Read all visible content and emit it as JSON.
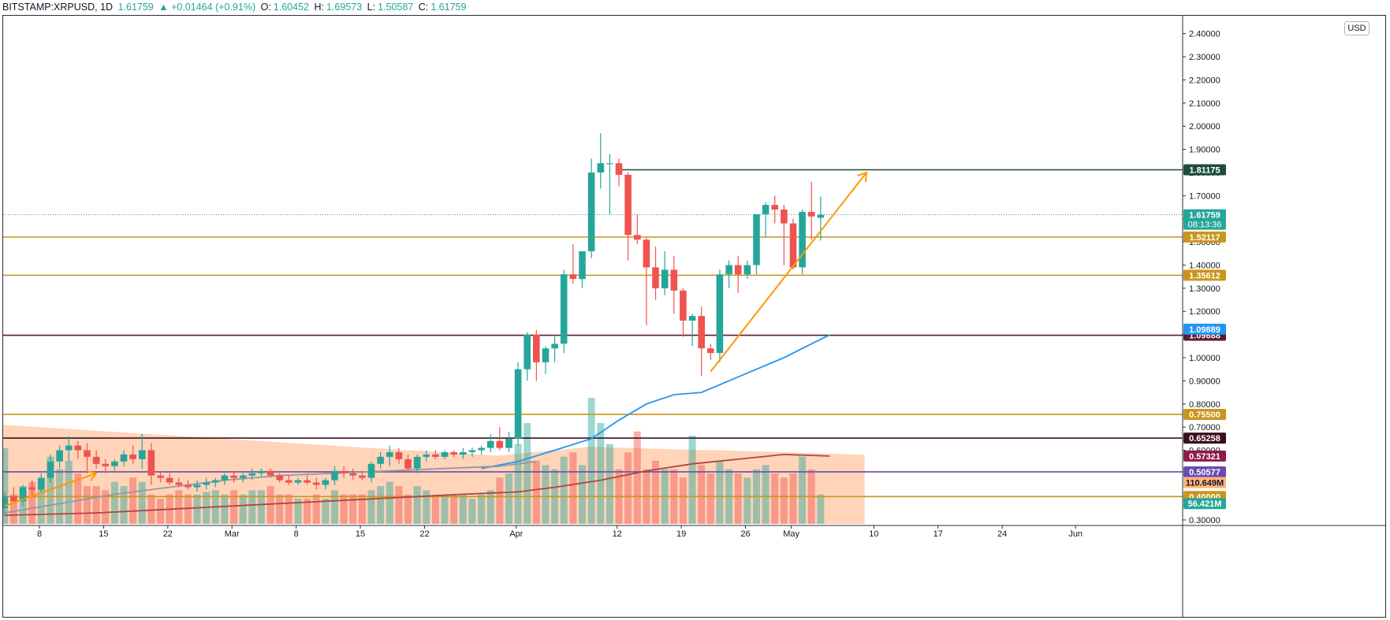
{
  "header": {
    "symbol": "BITSTAMP:XRPUSD, 1D",
    "last": "1.61759",
    "change": "▲ +0.01464 (+0.91%)",
    "open_label": "O:",
    "open": "1.60452",
    "high_label": "H:",
    "high": "1.69573",
    "low_label": "L:",
    "low": "1.50587",
    "close_label": "C:",
    "close": "1.61759"
  },
  "currency_label": "USD",
  "colors": {
    "up": "#26a69a",
    "down": "#ef5350",
    "ma_blue": "#2196f3",
    "ma_red": "#b2443e",
    "ma_grey": "#9598a1",
    "support_orange": "#cc9900",
    "arrow_orange": "#ff9800",
    "volume_area": "#ffc9a8"
  },
  "chart_data": {
    "type": "candlestick",
    "symbol": "XRPUSD",
    "timeframe": "1D",
    "y_axis_ticks": [
      "2.40000",
      "2.30000",
      "2.20000",
      "2.10000",
      "2.00000",
      "1.90000",
      "1.80000",
      "1.70000",
      "1.60000",
      "1.50000",
      "1.40000",
      "1.30000",
      "1.20000",
      "1.10000",
      "1.00000",
      "0.90000",
      "0.80000",
      "0.70000",
      "0.60000",
      "0.30000"
    ],
    "ylim": [
      0.3,
      2.4
    ],
    "x_axis_labels": [
      {
        "label": "8",
        "day": 0
      },
      {
        "label": "15",
        "day": 7
      },
      {
        "label": "22",
        "day": 14
      },
      {
        "label": "Mar",
        "day": 21
      },
      {
        "label": "8",
        "day": 28
      },
      {
        "label": "15",
        "day": 35
      },
      {
        "label": "22",
        "day": 42
      },
      {
        "label": "Apr",
        "day": 52
      },
      {
        "label": "12",
        "day": 63
      },
      {
        "label": "19",
        "day": 70
      },
      {
        "label": "26",
        "day": 77
      },
      {
        "label": "May",
        "day": 82
      },
      {
        "label": "10",
        "day": 91
      },
      {
        "label": "17",
        "day": 98
      },
      {
        "label": "24",
        "day": 105
      },
      {
        "label": "Jun",
        "day": 113
      }
    ],
    "candles": [
      [
        0.35,
        0.42,
        0.32,
        0.4
      ],
      [
        0.4,
        0.44,
        0.37,
        0.38
      ],
      [
        0.38,
        0.45,
        0.36,
        0.44
      ],
      [
        0.44,
        0.47,
        0.4,
        0.43
      ],
      [
        0.43,
        0.5,
        0.42,
        0.48
      ],
      [
        0.48,
        0.58,
        0.46,
        0.55
      ],
      [
        0.55,
        0.62,
        0.52,
        0.6
      ],
      [
        0.6,
        0.66,
        0.55,
        0.62
      ],
      [
        0.62,
        0.64,
        0.56,
        0.6
      ],
      [
        0.6,
        0.63,
        0.5,
        0.57
      ],
      [
        0.57,
        0.6,
        0.52,
        0.54
      ],
      [
        0.54,
        0.56,
        0.5,
        0.53
      ],
      [
        0.53,
        0.56,
        0.51,
        0.55
      ],
      [
        0.55,
        0.6,
        0.53,
        0.58
      ],
      [
        0.58,
        0.62,
        0.54,
        0.56
      ],
      [
        0.56,
        0.67,
        0.52,
        0.6
      ],
      [
        0.6,
        0.63,
        0.45,
        0.49
      ],
      [
        0.49,
        0.51,
        0.46,
        0.48
      ],
      [
        0.48,
        0.5,
        0.45,
        0.46
      ],
      [
        0.46,
        0.48,
        0.44,
        0.45
      ],
      [
        0.45,
        0.47,
        0.43,
        0.44
      ],
      [
        0.44,
        0.47,
        0.42,
        0.45
      ],
      [
        0.45,
        0.48,
        0.43,
        0.46
      ],
      [
        0.46,
        0.48,
        0.44,
        0.47
      ],
      [
        0.47,
        0.5,
        0.45,
        0.49
      ],
      [
        0.49,
        0.51,
        0.46,
        0.48
      ],
      [
        0.48,
        0.5,
        0.46,
        0.49
      ],
      [
        0.49,
        0.52,
        0.47,
        0.5
      ],
      [
        0.5,
        0.52,
        0.48,
        0.51
      ],
      [
        0.51,
        0.52,
        0.48,
        0.49
      ],
      [
        0.49,
        0.5,
        0.46,
        0.47
      ],
      [
        0.47,
        0.49,
        0.45,
        0.46
      ],
      [
        0.46,
        0.48,
        0.45,
        0.47
      ],
      [
        0.47,
        0.49,
        0.45,
        0.46
      ],
      [
        0.46,
        0.48,
        0.43,
        0.45
      ],
      [
        0.45,
        0.48,
        0.43,
        0.47
      ],
      [
        0.47,
        0.53,
        0.45,
        0.51
      ],
      [
        0.51,
        0.53,
        0.48,
        0.5
      ],
      [
        0.5,
        0.52,
        0.47,
        0.49
      ],
      [
        0.49,
        0.51,
        0.47,
        0.48
      ],
      [
        0.48,
        0.55,
        0.46,
        0.54
      ],
      [
        0.54,
        0.59,
        0.52,
        0.57
      ],
      [
        0.57,
        0.62,
        0.53,
        0.59
      ],
      [
        0.59,
        0.61,
        0.54,
        0.56
      ],
      [
        0.56,
        0.58,
        0.5,
        0.52
      ],
      [
        0.52,
        0.58,
        0.5,
        0.57
      ],
      [
        0.57,
        0.6,
        0.55,
        0.58
      ],
      [
        0.58,
        0.6,
        0.56,
        0.57
      ],
      [
        0.57,
        0.6,
        0.56,
        0.59
      ],
      [
        0.59,
        0.6,
        0.57,
        0.58
      ],
      [
        0.58,
        0.61,
        0.56,
        0.59
      ],
      [
        0.59,
        0.61,
        0.57,
        0.6
      ],
      [
        0.6,
        0.62,
        0.58,
        0.61
      ],
      [
        0.61,
        0.67,
        0.59,
        0.64
      ],
      [
        0.64,
        0.7,
        0.6,
        0.61
      ],
      [
        0.61,
        0.68,
        0.59,
        0.65
      ],
      [
        0.65,
        0.98,
        0.62,
        0.95
      ],
      [
        0.95,
        1.11,
        0.9,
        1.1
      ],
      [
        1.1,
        1.12,
        0.9,
        0.98
      ],
      [
        0.98,
        1.05,
        0.93,
        1.04
      ],
      [
        1.04,
        1.1,
        0.98,
        1.06
      ],
      [
        1.06,
        1.38,
        1.02,
        1.36
      ],
      [
        1.36,
        1.49,
        1.32,
        1.34
      ],
      [
        1.34,
        1.44,
        1.3,
        1.46
      ],
      [
        1.46,
        1.86,
        1.43,
        1.8
      ],
      [
        1.8,
        1.97,
        1.73,
        1.84
      ],
      [
        1.84,
        1.88,
        1.62,
        1.84
      ],
      [
        1.84,
        1.86,
        1.74,
        1.79
      ],
      [
        1.79,
        1.8,
        1.42,
        1.53
      ],
      [
        1.53,
        1.62,
        1.49,
        1.51
      ],
      [
        1.51,
        1.52,
        1.14,
        1.39
      ],
      [
        1.39,
        1.48,
        1.25,
        1.3
      ],
      [
        1.3,
        1.46,
        1.27,
        1.38
      ],
      [
        1.38,
        1.44,
        1.19,
        1.29
      ],
      [
        1.29,
        1.3,
        1.09,
        1.16
      ],
      [
        1.16,
        1.19,
        1.05,
        1.18
      ],
      [
        1.18,
        1.22,
        0.92,
        1.04
      ],
      [
        1.04,
        1.06,
        0.99,
        1.02
      ],
      [
        1.02,
        1.38,
        0.98,
        1.36
      ],
      [
        1.36,
        1.42,
        1.3,
        1.4
      ],
      [
        1.4,
        1.44,
        1.28,
        1.36
      ],
      [
        1.36,
        1.42,
        1.34,
        1.4
      ],
      [
        1.4,
        1.6,
        1.36,
        1.62
      ],
      [
        1.62,
        1.67,
        1.52,
        1.66
      ],
      [
        1.66,
        1.7,
        1.58,
        1.64
      ],
      [
        1.64,
        1.66,
        1.4,
        1.58
      ],
      [
        1.58,
        1.6,
        1.38,
        1.39
      ],
      [
        1.39,
        1.64,
        1.36,
        1.63
      ],
      [
        1.63,
        1.76,
        1.51,
        1.61
      ],
      [
        1.60452,
        1.69573,
        1.50587,
        1.61759
      ]
    ],
    "volume": {
      "max_label": "110.649M",
      "last_label": "56.421M",
      "values": [
        90,
        35,
        45,
        50,
        55,
        80,
        65,
        75,
        60,
        45,
        45,
        40,
        50,
        45,
        55,
        50,
        35,
        30,
        35,
        40,
        35,
        35,
        38,
        40,
        35,
        40,
        35,
        40,
        40,
        45,
        35,
        35,
        30,
        30,
        35,
        30,
        40,
        35,
        35,
        35,
        40,
        45,
        50,
        45,
        35,
        45,
        40,
        35,
        35,
        35,
        35,
        30,
        35,
        40,
        55,
        60,
        95,
        120,
        75,
        70,
        65,
        80,
        85,
        70,
        150,
        120,
        95,
        65,
        85,
        110,
        65,
        75,
        65,
        65,
        55,
        105,
        70,
        60,
        75,
        65,
        60,
        55,
        65,
        70,
        60,
        55,
        60,
        80,
        65,
        35
      ]
    },
    "horizontal_levels": [
      {
        "value": 1.81175,
        "label": "1.81175",
        "color": "#1e4d3a",
        "start_day": 67
      },
      {
        "value": 1.52117,
        "label": "1.52117",
        "color": "#c9951c"
      },
      {
        "value": 1.35612,
        "label": "1.35612",
        "color": "#c9951c"
      },
      {
        "value": 1.09688,
        "label": "1.09688",
        "color": "#5c1a2e"
      },
      {
        "value": 0.755,
        "label": "0.75500",
        "color": "#c9951c"
      },
      {
        "value": 0.65258,
        "label": "0.65258",
        "color": "#3a1020"
      },
      {
        "value": 0.50577,
        "label": "0.50577",
        "color": "#6a4cb0"
      },
      {
        "value": 0.4,
        "label": "0.40000",
        "color": "#c9951c"
      }
    ],
    "price_badges": [
      {
        "value": 1.61759,
        "label": "1.61759",
        "sublabel": "08:13:36",
        "color": "#26a69a"
      },
      {
        "value": 1.09889,
        "label": "1.09889",
        "color": "#2196f3",
        "offset": -7
      },
      {
        "value": 0.57321,
        "label": "0.57321",
        "color": "#8c1c4a"
      },
      {
        "value": 0.46,
        "label": "110.649M",
        "color": "#ffb27a",
        "text_color": "#131722"
      },
      {
        "value": 0.37,
        "label": "56.421M",
        "color": "#26a69a"
      }
    ],
    "moving_averages": [
      {
        "name": "ma-blue",
        "color": "#2196f3",
        "points": [
          [
            52,
            0.52
          ],
          [
            56,
            0.55
          ],
          [
            60,
            0.6
          ],
          [
            64,
            0.65
          ],
          [
            67,
            0.73
          ],
          [
            70,
            0.8
          ],
          [
            73,
            0.84
          ],
          [
            76,
            0.85
          ],
          [
            79,
            0.9
          ],
          [
            82,
            0.95
          ],
          [
            85,
            1.0
          ],
          [
            88,
            1.06
          ],
          [
            90,
            1.09889
          ]
        ]
      },
      {
        "name": "ma-red",
        "color": "#b2443e",
        "points": [
          [
            0,
            0.32
          ],
          [
            10,
            0.33
          ],
          [
            20,
            0.35
          ],
          [
            30,
            0.37
          ],
          [
            40,
            0.39
          ],
          [
            50,
            0.41
          ],
          [
            56,
            0.42
          ],
          [
            60,
            0.44
          ],
          [
            65,
            0.47
          ],
          [
            70,
            0.51
          ],
          [
            75,
            0.54
          ],
          [
            80,
            0.56
          ],
          [
            85,
            0.58
          ],
          [
            90,
            0.57321
          ]
        ]
      },
      {
        "name": "ma-grey",
        "color": "#9598a1",
        "points": [
          [
            0,
            0.33
          ],
          [
            6,
            0.37
          ],
          [
            12,
            0.41
          ],
          [
            18,
            0.44
          ],
          [
            24,
            0.47
          ],
          [
            30,
            0.49
          ],
          [
            36,
            0.5
          ],
          [
            42,
            0.51
          ],
          [
            48,
            0.52
          ],
          [
            54,
            0.53
          ],
          [
            58,
            0.55
          ]
        ]
      }
    ],
    "trend_arrows": [
      {
        "from": [
          0,
          0.36
        ],
        "to": [
          10,
          0.5
        ]
      },
      {
        "from": [
          77,
          0.94
        ],
        "to": [
          94,
          1.8
        ]
      }
    ]
  }
}
